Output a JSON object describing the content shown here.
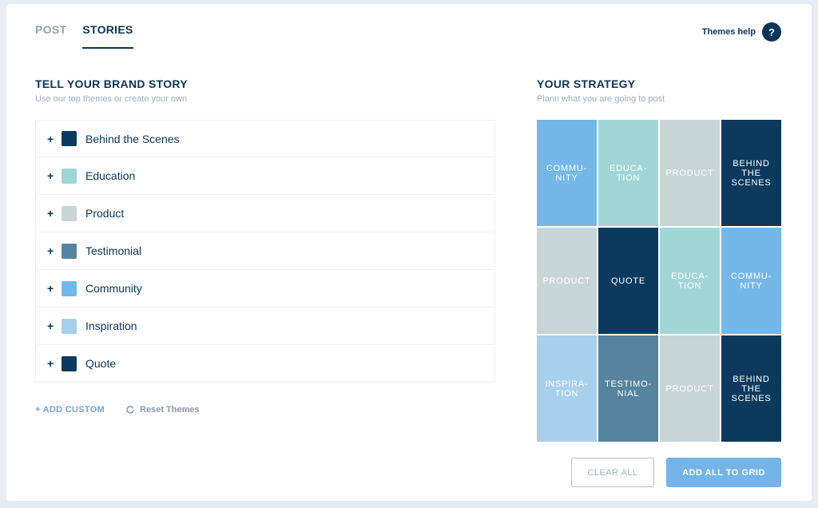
{
  "tabs": [
    {
      "label": "POST",
      "active": false
    },
    {
      "label": "STORIES",
      "active": true
    }
  ],
  "help": {
    "label": "Themes help",
    "icon": "question-icon",
    "glyph": "?"
  },
  "brand_story": {
    "title": "TELL YOUR BRAND STORY",
    "subtitle": "Use our top themes or create your own"
  },
  "themes": [
    {
      "label": "Behind the Scenes",
      "color": "#0b3a5e"
    },
    {
      "label": "Education",
      "color": "#a1d6d6"
    },
    {
      "label": "Product",
      "color": "#c7d5d6"
    },
    {
      "label": "Testimonial",
      "color": "#56839e"
    },
    {
      "label": "Community",
      "color": "#74b7e9"
    },
    {
      "label": "Inspiration",
      "color": "#a7d0ec"
    },
    {
      "label": "Quote",
      "color": "#0b3a5e"
    }
  ],
  "add_custom": "+ ADD CUSTOM",
  "reset_themes": "Reset Themes",
  "strategy": {
    "title": "YOUR STRATEGY",
    "subtitle": "Plann what you are going to post"
  },
  "grid_tiles": [
    {
      "label": "COMMU-\nNITY",
      "color": "#74b7e9"
    },
    {
      "label": "EDUCA-\nTION",
      "color": "#a1d6d6"
    },
    {
      "label": "PRODUCT",
      "color": "#c7d5d6"
    },
    {
      "label": "BEHIND\nTHE\nSCENES",
      "color": "#0b3a5e"
    },
    {
      "label": "PRODUCT",
      "color": "#c7d5d6"
    },
    {
      "label": "QUOTE",
      "color": "#0b3a5e"
    },
    {
      "label": "EDUCA-\nTION",
      "color": "#a1d6d6"
    },
    {
      "label": "COMMU-\nNITY",
      "color": "#74b7e9"
    },
    {
      "label": "INSPIRA-\nTION",
      "color": "#a7d0ec"
    },
    {
      "label": "TESTIMO-\nNIAL",
      "color": "#56839e"
    },
    {
      "label": "PRODUCT",
      "color": "#c7d5d6"
    },
    {
      "label": "BEHIND\nTHE\nSCENES",
      "color": "#0b3a5e"
    }
  ],
  "buttons": {
    "clear_all": "CLEAR ALL",
    "add_all": "ADD ALL TO GRID"
  }
}
